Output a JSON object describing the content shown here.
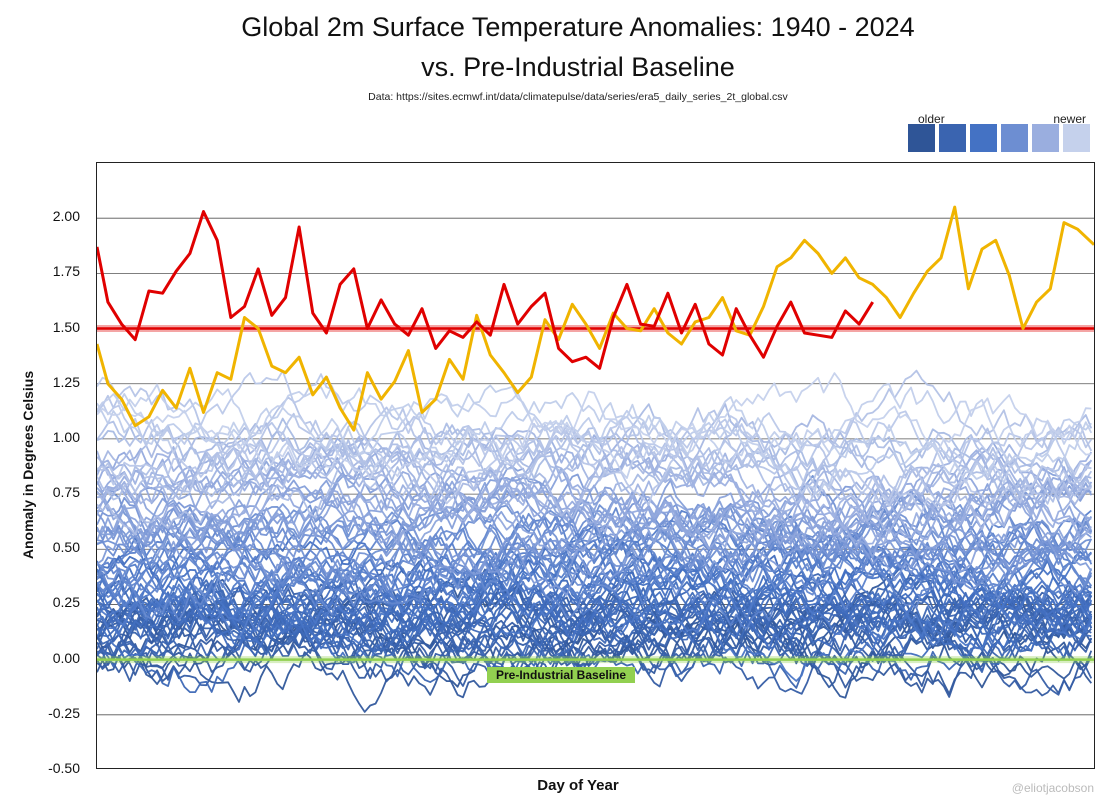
{
  "chart_data": {
    "type": "line",
    "title": "Global 2m Surface Temperature Anomalies: 1940 - 2024",
    "subtitle": "vs. Pre-Industrial Baseline",
    "source": "Data: https://sites.ecmwf.int/data/climatepulse/data/series/era5_daily_series_2t_global.csv",
    "xlabel": "Day of Year",
    "ylabel": "Anomaly in Degrees Celsius",
    "xlim": [
      1,
      366
    ],
    "ylim": [
      -0.5,
      2.25
    ],
    "y_ticks": [
      "2.00",
      "1.75",
      "1.50",
      "1.25",
      "1.00",
      "0.75",
      "0.50",
      "0.25",
      "0.00",
      "-0.25",
      "-0.50"
    ],
    "grid": "horizontal",
    "legend": {
      "placement": "top-right",
      "older_label": "older",
      "newer_label": "newer",
      "swatches": [
        "#2f5597",
        "#3a64b0",
        "#4472c4",
        "#6d8ed2",
        "#9aaedf",
        "#c5d1ec"
      ]
    },
    "reference_lines": [
      {
        "value": 1.5,
        "color": "#e00000"
      },
      {
        "value": 0.0,
        "color": "#92d050",
        "label": "Pre-Industrial Baseline"
      }
    ],
    "background_series": {
      "years": "1940-2022",
      "count": 83,
      "description_of_trend": "anomalies rise from about 0.1 for older years to about 1.1 for newer years"
    },
    "highlight_series": [
      {
        "color": "#f0b400",
        "x": [
          1,
          5,
          10,
          15,
          20,
          25,
          30,
          35,
          40,
          45,
          50,
          55,
          60,
          65,
          70,
          75,
          80,
          85,
          90,
          95,
          100,
          105,
          110,
          115,
          120,
          125,
          130,
          135,
          140,
          145,
          150,
          155,
          160,
          165,
          170,
          175,
          180,
          185,
          190,
          195,
          200,
          205,
          210,
          215,
          220,
          225,
          230,
          235,
          240,
          245,
          250,
          255,
          260,
          265,
          270,
          275,
          280,
          285,
          290,
          295,
          300,
          305,
          310,
          315,
          320,
          325,
          330,
          335,
          340,
          345,
          350,
          355,
          360,
          366
        ],
        "y": [
          1.43,
          1.25,
          1.18,
          1.06,
          1.1,
          1.22,
          1.14,
          1.32,
          1.12,
          1.3,
          1.27,
          1.55,
          1.5,
          1.33,
          1.3,
          1.37,
          1.2,
          1.28,
          1.14,
          1.04,
          1.3,
          1.18,
          1.26,
          1.4,
          1.12,
          1.18,
          1.36,
          1.27,
          1.56,
          1.38,
          1.3,
          1.21,
          1.28,
          1.54,
          1.45,
          1.61,
          1.52,
          1.41,
          1.57,
          1.5,
          1.49,
          1.59,
          1.48,
          1.43,
          1.53,
          1.55,
          1.64,
          1.49,
          1.47,
          1.6,
          1.78,
          1.82,
          1.9,
          1.84,
          1.75,
          1.82,
          1.73,
          1.7,
          1.64,
          1.55,
          1.66,
          1.76,
          1.82,
          2.05,
          1.68,
          1.86,
          1.9,
          1.74,
          1.5,
          1.62,
          1.68,
          1.98,
          1.95,
          1.88
        ]
      },
      {
        "color": "#e00000",
        "x": [
          1,
          5,
          10,
          15,
          20,
          25,
          30,
          35,
          40,
          45,
          50,
          55,
          60,
          65,
          70,
          75,
          80,
          85,
          90,
          95,
          100,
          105,
          110,
          115,
          120,
          125,
          130,
          135,
          140,
          145,
          150,
          155,
          160,
          165,
          170,
          175,
          180,
          185,
          190,
          195,
          200,
          205,
          210,
          215,
          220,
          225,
          230,
          235,
          240,
          245,
          250,
          255,
          260,
          265,
          270,
          275,
          280,
          285,
          285
        ],
        "y": [
          1.87,
          1.62,
          1.52,
          1.45,
          1.67,
          1.66,
          1.76,
          1.84,
          2.03,
          1.9,
          1.55,
          1.6,
          1.77,
          1.56,
          1.64,
          1.96,
          1.57,
          1.48,
          1.7,
          1.77,
          1.5,
          1.63,
          1.52,
          1.47,
          1.59,
          1.41,
          1.49,
          1.46,
          1.53,
          1.47,
          1.7,
          1.52,
          1.6,
          1.66,
          1.41,
          1.35,
          1.37,
          1.32,
          1.55,
          1.7,
          1.52,
          1.51,
          1.66,
          1.48,
          1.61,
          1.43,
          1.38,
          1.59,
          1.47,
          1.37,
          1.51,
          1.62,
          1.48,
          1.47,
          1.46,
          1.58,
          1.52,
          1.62,
          1.62
        ]
      }
    ],
    "credit": "@eliotjacobson"
  }
}
